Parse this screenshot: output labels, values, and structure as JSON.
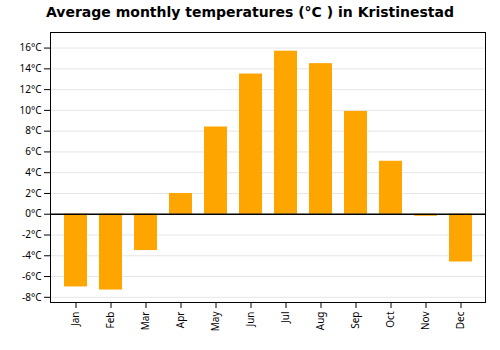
{
  "chart_data": {
    "type": "bar",
    "title": "Average monthly temperatures (°C ) in Kristinestad",
    "categories": [
      "Jan",
      "Feb",
      "Mar",
      "Apr",
      "May",
      "Jun",
      "Jul",
      "Aug",
      "Sep",
      "Oct",
      "Nov",
      "Dec"
    ],
    "values": [
      -7.0,
      -7.3,
      -3.5,
      2.0,
      8.4,
      13.5,
      15.7,
      14.5,
      9.9,
      5.1,
      -0.2,
      -4.6
    ],
    "color": "#FFA500",
    "ylim": [
      -8.5,
      17.5
    ],
    "yticks": [
      {
        "value": -8,
        "label": "-8°C"
      },
      {
        "value": -6,
        "label": "-6°C"
      },
      {
        "value": -4,
        "label": "-4°C"
      },
      {
        "value": -2,
        "label": "-2°C"
      },
      {
        "value": 0,
        "label": "0°C"
      },
      {
        "value": 2,
        "label": "2°C"
      },
      {
        "value": 4,
        "label": "4°C"
      },
      {
        "value": 6,
        "label": "6°C"
      },
      {
        "value": 8,
        "label": "8°C"
      },
      {
        "value": 10,
        "label": "10°C"
      },
      {
        "value": 12,
        "label": "12°C"
      },
      {
        "value": 14,
        "label": "14°C"
      },
      {
        "value": 16,
        "label": "16°C"
      }
    ],
    "grid": true
  }
}
